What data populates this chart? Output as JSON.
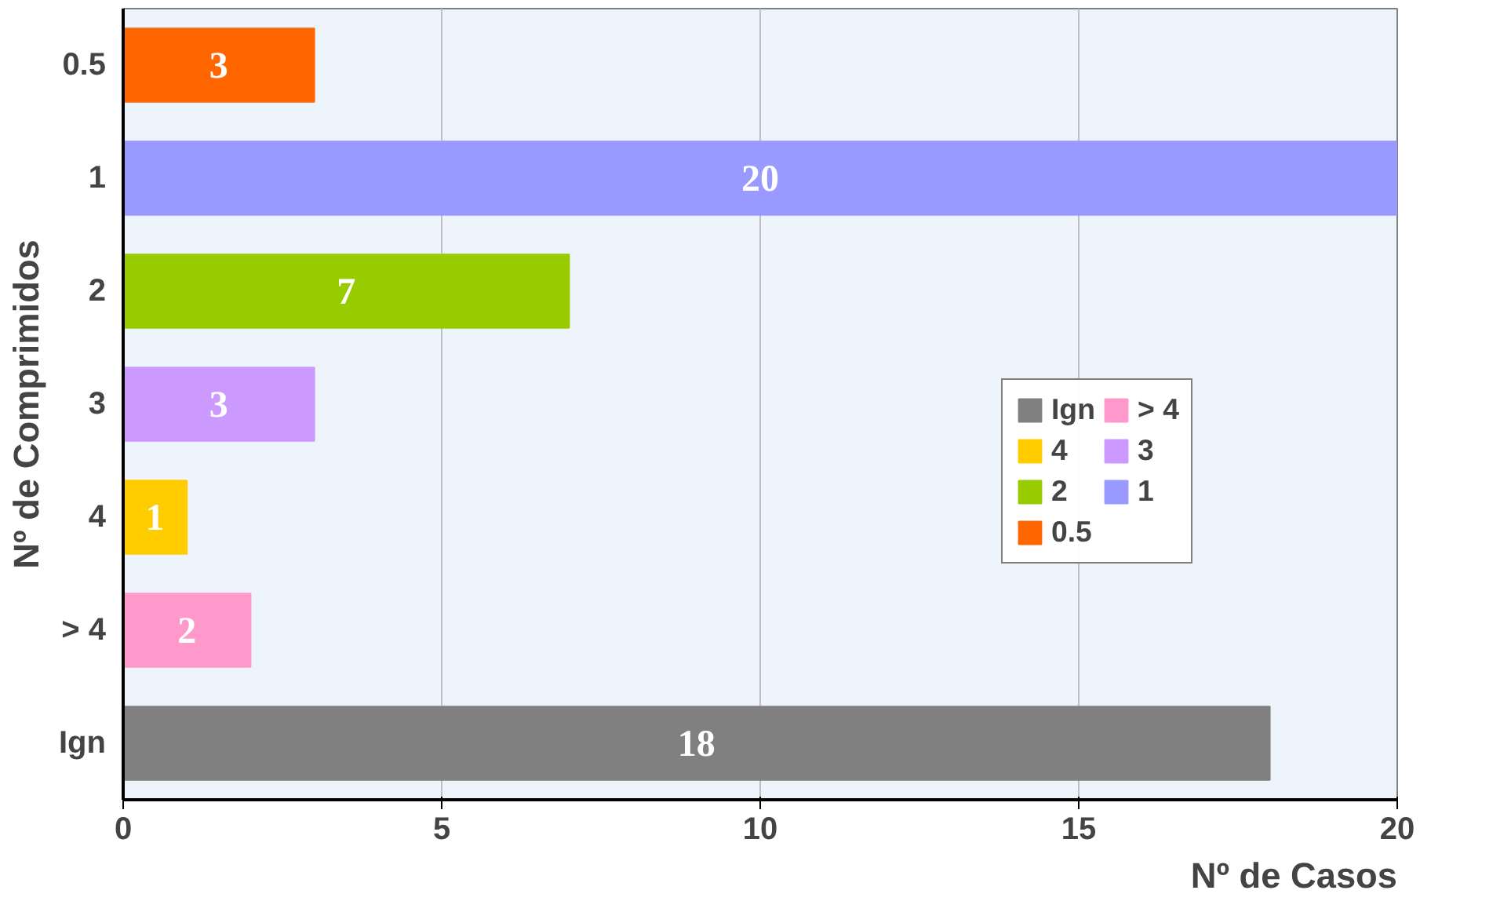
{
  "chart_data": {
    "type": "bar",
    "orientation": "horizontal",
    "xlabel": "Nº de Casos",
    "ylabel": "Nº de Comprimidos",
    "categories": [
      "0.5",
      "1",
      "2",
      "3",
      "4",
      "> 4",
      "Ign"
    ],
    "series": [
      {
        "name": "Ign",
        "color": "#808080",
        "values": [
          null,
          null,
          null,
          null,
          null,
          null,
          18
        ]
      },
      {
        "name": "> 4",
        "color": "#ff99cc",
        "values": [
          null,
          null,
          null,
          null,
          null,
          2,
          null
        ]
      },
      {
        "name": "4",
        "color": "#ffcc00",
        "values": [
          null,
          null,
          null,
          null,
          1,
          null,
          null
        ]
      },
      {
        "name": "3",
        "color": "#cc99ff",
        "values": [
          null,
          null,
          null,
          3,
          null,
          null,
          null
        ]
      },
      {
        "name": "2",
        "color": "#99cc00",
        "values": [
          null,
          null,
          7,
          null,
          null,
          null,
          null
        ]
      },
      {
        "name": "1",
        "color": "#9999ff",
        "values": [
          null,
          20,
          null,
          null,
          null,
          null,
          null
        ]
      },
      {
        "name": "0.5",
        "color": "#ff6600",
        "values": [
          3,
          null,
          null,
          null,
          null,
          null,
          null
        ]
      }
    ],
    "xlim": [
      0,
      20
    ],
    "xticks": [
      0,
      5,
      10,
      15,
      20
    ],
    "grid": "x",
    "legend": "right",
    "data_labels": true
  }
}
